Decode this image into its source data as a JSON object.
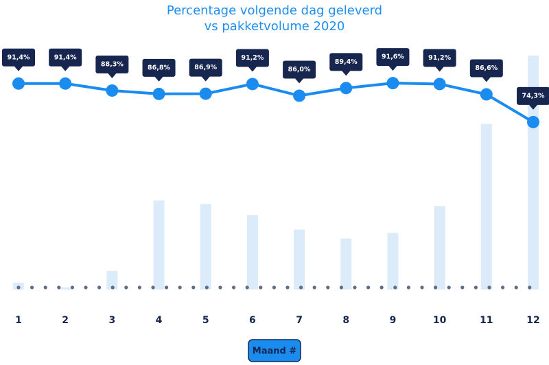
{
  "chart_data": {
    "type": "bar_line",
    "title": [
      "Percentage volgende dag geleverd",
      "vs pakketvolume 2020"
    ],
    "categories": [
      "1",
      "2",
      "3",
      "4",
      "5",
      "6",
      "7",
      "8",
      "9",
      "10",
      "11",
      "12"
    ],
    "series": [
      {
        "type": "line",
        "color": "#1a8cf0",
        "label_color": "#16264f",
        "values": [
          91.4,
          91.4,
          88.3,
          86.8,
          86.9,
          91.2,
          86.0,
          89.4,
          91.6,
          91.2,
          86.6,
          74.3
        ],
        "value_labels": [
          "91,4%",
          "91,4%",
          "88,3%",
          "86,8%",
          "86,9%",
          "91,2%",
          "86,0%",
          "89,4%",
          "91,6%",
          "91,2%",
          "86,6%",
          "74,3%"
        ]
      },
      {
        "type": "bar",
        "axis": "y2",
        "color": "#dcebf9",
        "values": [
          10,
          3,
          27,
          129,
          124,
          108,
          87,
          74,
          82,
          121,
          240,
          339
        ]
      }
    ],
    "ylim": [
      70,
      95
    ],
    "y2lim": [
      0,
      340
    ],
    "xlabel": "Maand #"
  }
}
